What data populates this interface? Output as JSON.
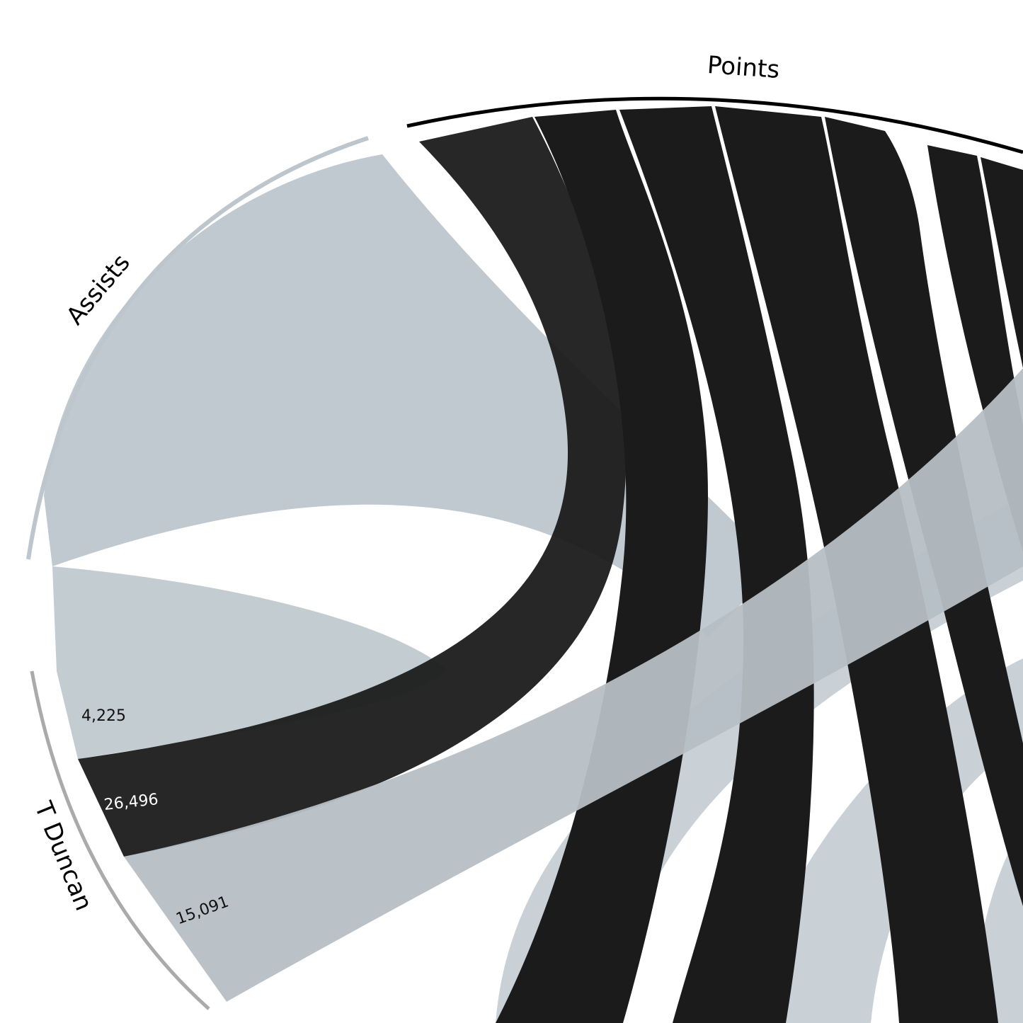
{
  "chart_data": {
    "type": "chord",
    "categories": [
      "Assists",
      "Points",
      null
    ],
    "series": [
      {
        "name": "T Duncan",
        "values": [
          4225,
          26496,
          15091
        ],
        "value_labels": [
          "4,225",
          "26,496",
          "15,091"
        ],
        "colors": [
          "#c0c9cf",
          "#1b1b1b",
          "#b6bfc5"
        ]
      }
    ]
  }
}
